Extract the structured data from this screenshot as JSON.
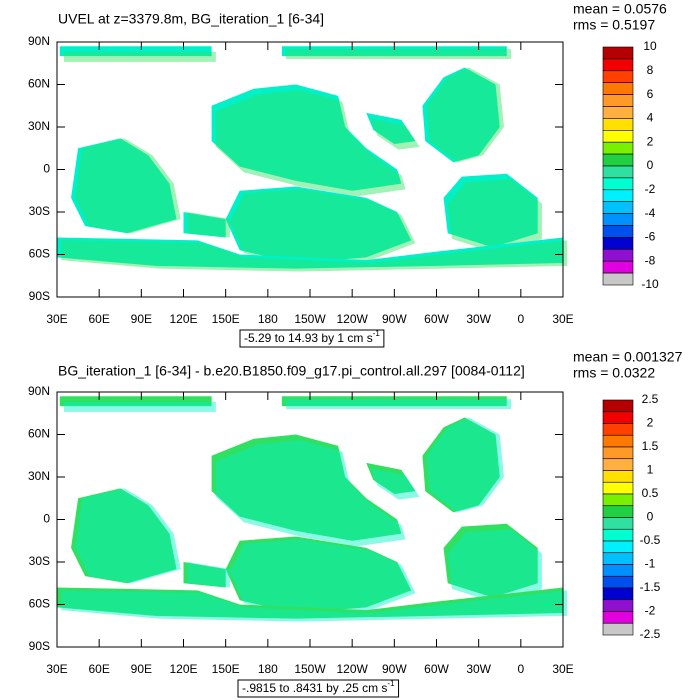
{
  "panels": [
    {
      "title": "UVEL at z=3379.8m, BG_iteration_1 [6-34]",
      "stats": [
        "mean = 0.0576",
        "rms = 0.5197"
      ],
      "y_labels": [
        "90N",
        "60N",
        "30N",
        "0",
        "30S",
        "60S",
        "90S"
      ],
      "x_labels": [
        "30E",
        "60E",
        "90E",
        "120E",
        "150E",
        "180",
        "150W",
        "120W",
        "90W",
        "60W",
        "30W",
        "0",
        "30E"
      ],
      "range": {
        "text": "-5.29 to 14.93 by 1 cm s",
        "sup": "-1"
      },
      "colorbar_labels": [
        "10",
        "8",
        "6",
        "4",
        "2",
        "0",
        "-2",
        "-4",
        "-6",
        "-8",
        "-10"
      ]
    },
    {
      "title": "BG_iteration_1 [6-34] - b.e20.B1850.f09_g17.pi_control.all.297 [0084-0112]",
      "stats": [
        "mean = 0.001327",
        "rms = 0.0322"
      ],
      "y_labels": [
        "90N",
        "60N",
        "30N",
        "0",
        "30S",
        "60S",
        "90S"
      ],
      "x_labels": [
        "30E",
        "60E",
        "90E",
        "120E",
        "150E",
        "180",
        "150W",
        "120W",
        "90W",
        "60W",
        "30W",
        "0",
        "30E"
      ],
      "range": {
        "text": "-.9815 to .8431 by .25 cm s",
        "sup": "-1"
      },
      "colorbar_labels": [
        "2.5",
        "2",
        "1.5",
        "1",
        "0.5",
        "0",
        "-0.5",
        "-1",
        "-1.5",
        "-2",
        "-2.5"
      ]
    }
  ]
}
